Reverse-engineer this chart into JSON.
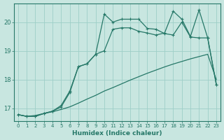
{
  "xlabel": "Humidex (Indice chaleur)",
  "background_color": "#c8e6e0",
  "grid_color": "#9ecfc7",
  "line_color": "#267868",
  "xlim": [
    -0.5,
    23.5
  ],
  "ylim": [
    16.55,
    20.65
  ],
  "yticks": [
    17,
    18,
    19,
    20
  ],
  "xticks": [
    0,
    1,
    2,
    3,
    4,
    5,
    6,
    7,
    8,
    9,
    10,
    11,
    12,
    13,
    14,
    15,
    16,
    17,
    18,
    19,
    20,
    21,
    22,
    23
  ],
  "line1_x": [
    0,
    1,
    2,
    3,
    4,
    5,
    6,
    7,
    8,
    9,
    10,
    11,
    12,
    13,
    14,
    15,
    16,
    17,
    18,
    19,
    20,
    21,
    22,
    23
  ],
  "line1_y": [
    16.78,
    16.72,
    16.75,
    16.82,
    16.88,
    16.96,
    17.05,
    17.18,
    17.32,
    17.45,
    17.6,
    17.72,
    17.85,
    17.98,
    18.1,
    18.22,
    18.33,
    18.44,
    18.54,
    18.63,
    18.72,
    18.8,
    18.88,
    18.0
  ],
  "line2_x": [
    0,
    1,
    2,
    3,
    4,
    5,
    6,
    7,
    8,
    9,
    10,
    11,
    12,
    13,
    14,
    15,
    16,
    17,
    18,
    19,
    20,
    21,
    22,
    23
  ],
  "line2_y": [
    16.78,
    16.72,
    16.72,
    16.82,
    16.9,
    17.05,
    17.55,
    18.45,
    18.55,
    18.88,
    20.28,
    20.0,
    20.1,
    20.1,
    20.1,
    19.78,
    19.75,
    19.6,
    19.55,
    20.0,
    19.48,
    19.45,
    19.45,
    17.83
  ],
  "line3_x": [
    0,
    1,
    2,
    3,
    4,
    5,
    6,
    7,
    8,
    9,
    10,
    11,
    12,
    13,
    14,
    15,
    16,
    17,
    18,
    19,
    20,
    21,
    22,
    23
  ],
  "line3_y": [
    16.78,
    16.72,
    16.72,
    16.82,
    16.9,
    17.1,
    17.6,
    18.45,
    18.55,
    18.88,
    19.0,
    19.75,
    19.8,
    19.8,
    19.68,
    19.62,
    19.55,
    19.62,
    20.38,
    20.1,
    19.5,
    20.42,
    19.45,
    17.83
  ]
}
